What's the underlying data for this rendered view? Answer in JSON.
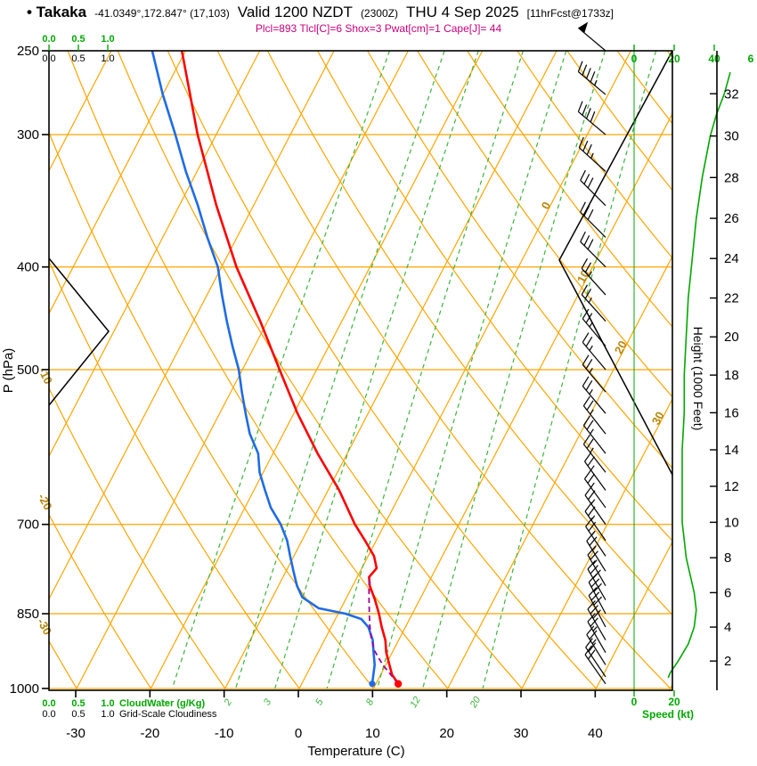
{
  "header": {
    "station": "• Takaka",
    "coords": "-41.0349°,172.847° (17,103)",
    "valid": "Valid 1200 NZDT",
    "zulu": "(2300Z)",
    "date": "THU 4 Sep 2025",
    "fcst": "[11hrFcst@1733z]",
    "params": "Plcl=893 Tlcl[C]=6 Shox=3 Pwat[cm]=1 Cape[J]= 44"
  },
  "chart_data": {
    "type": "line",
    "subtype": "skew-t-log-p-sounding",
    "pressure_axis": {
      "label": "P (hPa)",
      "ticks": [
        250,
        300,
        400,
        500,
        700,
        850,
        1000
      ]
    },
    "temp_axis": {
      "label": "Temperature (C)",
      "ticks": [
        -30,
        -20,
        -10,
        0,
        10,
        20,
        30,
        40
      ]
    },
    "height_axis": {
      "label": "Height (1000 Feet)",
      "labels_kft": [
        2,
        4,
        6,
        8,
        10,
        12,
        14,
        16,
        18,
        20,
        22,
        24,
        26,
        28,
        30,
        32
      ]
    },
    "speed_axis": {
      "label": "Speed (kt)",
      "ticks": [
        0,
        20,
        40
      ],
      "bottom_ticks": [
        0,
        20
      ],
      "corner_label": "6"
    },
    "cloudwater_scale": {
      "label": "CloudWater (g/Kg)",
      "ticks": [
        "0.0",
        "0.5",
        "1.0"
      ]
    },
    "cloudiness_scale": {
      "label": "Grid-Scale Cloudiness",
      "ticks": [
        "0.0",
        "0.5",
        "1.0"
      ]
    },
    "mixing_ratio_lines": [
      1,
      2,
      3,
      5,
      8,
      12,
      20
    ],
    "dry_adiabat_labels": [
      -10,
      -20,
      -30
    ],
    "isotherm_labels": [
      0,
      10,
      20,
      30
    ],
    "temperature_profile_p_degC": [
      [
        990,
        13
      ],
      [
        970,
        11.5
      ],
      [
        950,
        10.5
      ],
      [
        925,
        9.2
      ],
      [
        900,
        8.2
      ],
      [
        875,
        6.8
      ],
      [
        850,
        5.5
      ],
      [
        825,
        4
      ],
      [
        800,
        2.3
      ],
      [
        785,
        1.6
      ],
      [
        770,
        2.0
      ],
      [
        750,
        0.8
      ],
      [
        725,
        -1.5
      ],
      [
        700,
        -4
      ],
      [
        650,
        -8.5
      ],
      [
        600,
        -14
      ],
      [
        550,
        -19.5
      ],
      [
        500,
        -25
      ],
      [
        450,
        -31
      ],
      [
        400,
        -38
      ],
      [
        350,
        -45
      ],
      [
        300,
        -52.5
      ],
      [
        250,
        -60.5
      ]
    ],
    "dewpoint_profile_p_degC": [
      [
        990,
        9.5
      ],
      [
        970,
        9
      ],
      [
        950,
        8.5
      ],
      [
        925,
        7.5
      ],
      [
        900,
        6.5
      ],
      [
        875,
        5
      ],
      [
        860,
        3.5
      ],
      [
        850,
        1
      ],
      [
        840,
        -3
      ],
      [
        820,
        -6
      ],
      [
        800,
        -7.5
      ],
      [
        775,
        -9
      ],
      [
        750,
        -10.5
      ],
      [
        725,
        -12
      ],
      [
        700,
        -14
      ],
      [
        675,
        -16.5
      ],
      [
        650,
        -18.5
      ],
      [
        625,
        -20.5
      ],
      [
        600,
        -22
      ],
      [
        575,
        -24.5
      ],
      [
        550,
        -26.5
      ],
      [
        525,
        -28.5
      ],
      [
        500,
        -30.5
      ],
      [
        475,
        -33
      ],
      [
        450,
        -35.5
      ],
      [
        425,
        -38
      ],
      [
        400,
        -40.5
      ],
      [
        375,
        -44
      ],
      [
        350,
        -47.5
      ],
      [
        325,
        -51.5
      ],
      [
        300,
        -55.5
      ],
      [
        275,
        -60
      ],
      [
        250,
        -64.5
      ]
    ],
    "parcel_profile_p_degC": [
      [
        990,
        13
      ],
      [
        950,
        9.6
      ],
      [
        920,
        7.4
      ],
      [
        893,
        6
      ],
      [
        870,
        5
      ],
      [
        850,
        4.2
      ],
      [
        825,
        3.2
      ],
      [
        800,
        2.2
      ],
      [
        783,
        1.6
      ]
    ],
    "wind_profile_p_dir_kt": [
      [
        250,
        310,
        50
      ],
      [
        275,
        310,
        44
      ],
      [
        300,
        310,
        38
      ],
      [
        325,
        312,
        34
      ],
      [
        350,
        315,
        31
      ],
      [
        375,
        315,
        29
      ],
      [
        400,
        315,
        28
      ],
      [
        425,
        318,
        27
      ],
      [
        450,
        318,
        26
      ],
      [
        475,
        320,
        26
      ],
      [
        500,
        320,
        25
      ],
      [
        525,
        320,
        25
      ],
      [
        550,
        320,
        25
      ],
      [
        575,
        322,
        24
      ],
      [
        600,
        322,
        24
      ],
      [
        625,
        322,
        24
      ],
      [
        650,
        324,
        24
      ],
      [
        675,
        324,
        24
      ],
      [
        700,
        325,
        24
      ],
      [
        725,
        325,
        25
      ],
      [
        750,
        326,
        25
      ],
      [
        775,
        328,
        26
      ],
      [
        800,
        330,
        27
      ],
      [
        825,
        330,
        29
      ],
      [
        850,
        332,
        30
      ],
      [
        875,
        332,
        31
      ],
      [
        900,
        330,
        30
      ],
      [
        925,
        330,
        27
      ],
      [
        950,
        328,
        24
      ],
      [
        975,
        326,
        20
      ],
      [
        990,
        325,
        18
      ]
    ],
    "speed_curve_kft_kt": [
      [
        1.0,
        17
      ],
      [
        1.3,
        18
      ],
      [
        2,
        22
      ],
      [
        3,
        27
      ],
      [
        4,
        30
      ],
      [
        5,
        31
      ],
      [
        6,
        30
      ],
      [
        7,
        28
      ],
      [
        8,
        26
      ],
      [
        9,
        25
      ],
      [
        10,
        24
      ],
      [
        12,
        24
      ],
      [
        14,
        24
      ],
      [
        16,
        25
      ],
      [
        18,
        25
      ],
      [
        20,
        26
      ],
      [
        22,
        27
      ],
      [
        24,
        29
      ],
      [
        26,
        31
      ],
      [
        28,
        34
      ],
      [
        30,
        38
      ],
      [
        31,
        41
      ],
      [
        32,
        45
      ],
      [
        33,
        48
      ]
    ],
    "colors": {
      "grid_orange": "#FFA500",
      "mixing_green": "#3CB43C",
      "bright_green": "#00A800",
      "temperature_red": "#FF0000",
      "dewpoint_blue": "#1E6BE6",
      "parcel_purple": "#A000A0",
      "diagonal_label_olive": "#B8860B",
      "magenta": "#C8007D",
      "black": "#000000"
    }
  }
}
